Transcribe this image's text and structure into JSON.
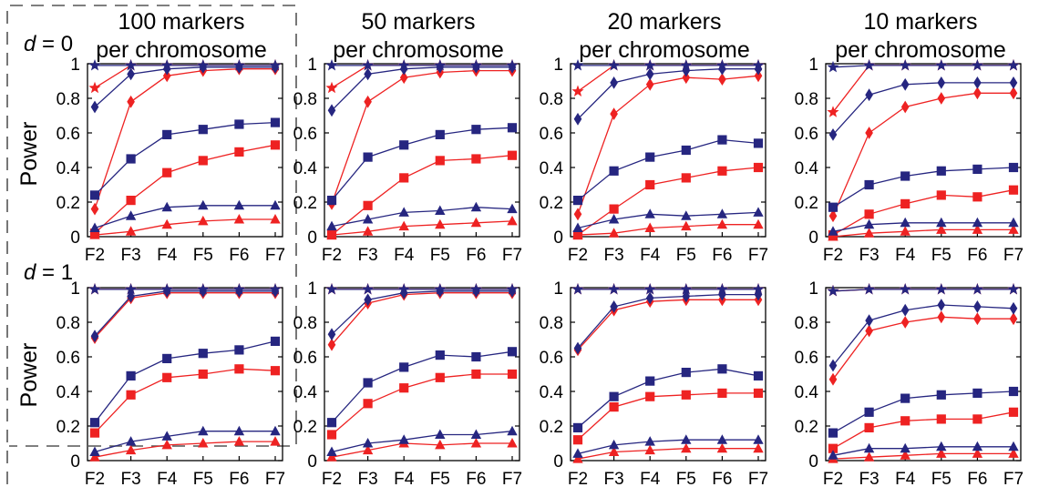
{
  "colors": {
    "blue": "#262680",
    "red": "#ee2222"
  },
  "col_titles": [
    {
      "line1": "100 markers",
      "line2": "per chromosome"
    },
    {
      "line1": "50 markers",
      "line2": "per chromosome"
    },
    {
      "line1": "20 markers",
      "line2": "per chromosome"
    },
    {
      "line1": "10 markers",
      "line2": "per chromosome"
    }
  ],
  "row_labels": [
    {
      "var": "d",
      "rest": " = 0"
    },
    {
      "var": "d",
      "rest": " = 1"
    }
  ],
  "ylabel": "Power",
  "xticks": [
    "F2",
    "F3",
    "F4",
    "F5",
    "F6",
    "F7"
  ],
  "yticks": [
    "0",
    "0.2",
    "0.4",
    "0.6",
    "0.8",
    "1"
  ],
  "chart_data": [
    {
      "type": "line",
      "row": 0,
      "col": 0,
      "ylim": [
        0,
        1
      ],
      "categories": [
        "F2",
        "F3",
        "F4",
        "F5",
        "F6",
        "F7"
      ],
      "series": [
        {
          "marker": "star",
          "color": "blue",
          "values": [
            0.99,
            0.99,
            0.99,
            0.99,
            0.99,
            0.99
          ]
        },
        {
          "marker": "star",
          "color": "red",
          "values": [
            0.86,
            0.99,
            0.99,
            0.99,
            0.99,
            0.99
          ]
        },
        {
          "marker": "diamond",
          "color": "blue",
          "values": [
            0.75,
            0.94,
            0.97,
            0.98,
            0.98,
            0.98
          ]
        },
        {
          "marker": "diamond",
          "color": "red",
          "values": [
            0.16,
            0.78,
            0.93,
            0.96,
            0.97,
            0.97
          ]
        },
        {
          "marker": "square",
          "color": "blue",
          "values": [
            0.24,
            0.45,
            0.59,
            0.62,
            0.65,
            0.66
          ]
        },
        {
          "marker": "square",
          "color": "red",
          "values": [
            0.02,
            0.21,
            0.37,
            0.44,
            0.49,
            0.53
          ]
        },
        {
          "marker": "triangle",
          "color": "blue",
          "values": [
            0.05,
            0.12,
            0.17,
            0.18,
            0.18,
            0.18
          ]
        },
        {
          "marker": "triangle",
          "color": "red",
          "values": [
            0.01,
            0.03,
            0.07,
            0.09,
            0.1,
            0.1
          ]
        }
      ]
    },
    {
      "type": "line",
      "row": 0,
      "col": 1,
      "ylim": [
        0,
        1
      ],
      "categories": [
        "F2",
        "F3",
        "F4",
        "F5",
        "F6",
        "F7"
      ],
      "series": [
        {
          "marker": "star",
          "color": "blue",
          "values": [
            0.99,
            0.99,
            0.99,
            0.99,
            0.99,
            0.99
          ]
        },
        {
          "marker": "star",
          "color": "red",
          "values": [
            0.86,
            0.99,
            0.99,
            0.99,
            0.99,
            0.99
          ]
        },
        {
          "marker": "diamond",
          "color": "blue",
          "values": [
            0.73,
            0.94,
            0.97,
            0.98,
            0.98,
            0.98
          ]
        },
        {
          "marker": "diamond",
          "color": "red",
          "values": [
            0.19,
            0.78,
            0.92,
            0.95,
            0.96,
            0.96
          ]
        },
        {
          "marker": "square",
          "color": "blue",
          "values": [
            0.21,
            0.46,
            0.53,
            0.59,
            0.62,
            0.63
          ]
        },
        {
          "marker": "square",
          "color": "red",
          "values": [
            0.01,
            0.18,
            0.34,
            0.44,
            0.45,
            0.47
          ]
        },
        {
          "marker": "triangle",
          "color": "blue",
          "values": [
            0.06,
            0.1,
            0.14,
            0.15,
            0.17,
            0.16
          ]
        },
        {
          "marker": "triangle",
          "color": "red",
          "values": [
            0.01,
            0.03,
            0.06,
            0.07,
            0.08,
            0.09
          ]
        }
      ]
    },
    {
      "type": "line",
      "row": 0,
      "col": 2,
      "ylim": [
        0,
        1
      ],
      "categories": [
        "F2",
        "F3",
        "F4",
        "F5",
        "F6",
        "F7"
      ],
      "series": [
        {
          "marker": "star",
          "color": "blue",
          "values": [
            0.99,
            0.99,
            0.99,
            0.99,
            0.99,
            0.99
          ]
        },
        {
          "marker": "star",
          "color": "red",
          "values": [
            0.84,
            0.99,
            0.99,
            0.99,
            0.99,
            0.99
          ]
        },
        {
          "marker": "diamond",
          "color": "blue",
          "values": [
            0.68,
            0.89,
            0.94,
            0.96,
            0.97,
            0.97
          ]
        },
        {
          "marker": "diamond",
          "color": "red",
          "values": [
            0.13,
            0.71,
            0.88,
            0.92,
            0.91,
            0.93
          ]
        },
        {
          "marker": "square",
          "color": "blue",
          "values": [
            0.21,
            0.38,
            0.46,
            0.5,
            0.56,
            0.54
          ]
        },
        {
          "marker": "square",
          "color": "red",
          "values": [
            0.01,
            0.16,
            0.3,
            0.34,
            0.38,
            0.4
          ]
        },
        {
          "marker": "triangle",
          "color": "blue",
          "values": [
            0.05,
            0.1,
            0.13,
            0.12,
            0.13,
            0.14
          ]
        },
        {
          "marker": "triangle",
          "color": "red",
          "values": [
            0.01,
            0.02,
            0.05,
            0.06,
            0.07,
            0.07
          ]
        }
      ]
    },
    {
      "type": "line",
      "row": 0,
      "col": 3,
      "ylim": [
        0,
        1
      ],
      "categories": [
        "F2",
        "F3",
        "F4",
        "F5",
        "F6",
        "F7"
      ],
      "series": [
        {
          "marker": "star",
          "color": "blue",
          "values": [
            0.98,
            0.99,
            0.99,
            0.99,
            0.99,
            0.99
          ]
        },
        {
          "marker": "star",
          "color": "red",
          "values": [
            0.72,
            0.99,
            0.99,
            0.99,
            0.99,
            0.99
          ]
        },
        {
          "marker": "diamond",
          "color": "blue",
          "values": [
            0.59,
            0.82,
            0.88,
            0.89,
            0.89,
            0.89
          ]
        },
        {
          "marker": "diamond",
          "color": "red",
          "values": [
            0.12,
            0.6,
            0.75,
            0.8,
            0.83,
            0.83
          ]
        },
        {
          "marker": "square",
          "color": "blue",
          "values": [
            0.17,
            0.3,
            0.35,
            0.38,
            0.39,
            0.4
          ]
        },
        {
          "marker": "square",
          "color": "red",
          "values": [
            0.01,
            0.13,
            0.19,
            0.24,
            0.23,
            0.27
          ]
        },
        {
          "marker": "triangle",
          "color": "blue",
          "values": [
            0.03,
            0.07,
            0.08,
            0.08,
            0.08,
            0.08
          ]
        },
        {
          "marker": "triangle",
          "color": "red",
          "values": [
            0.0,
            0.02,
            0.03,
            0.04,
            0.04,
            0.04
          ]
        }
      ]
    },
    {
      "type": "line",
      "row": 1,
      "col": 0,
      "ylim": [
        0,
        1
      ],
      "categories": [
        "F2",
        "F3",
        "F4",
        "F5",
        "F6",
        "F7"
      ],
      "series": [
        {
          "marker": "star",
          "color": "blue",
          "values": [
            0.99,
            0.99,
            0.99,
            0.99,
            0.99,
            0.99
          ]
        },
        {
          "marker": "star",
          "color": "red",
          "values": [
            0.99,
            0.99,
            0.99,
            0.99,
            0.99,
            0.99
          ]
        },
        {
          "marker": "diamond",
          "color": "blue",
          "values": [
            0.72,
            0.95,
            0.98,
            0.98,
            0.98,
            0.98
          ]
        },
        {
          "marker": "diamond",
          "color": "red",
          "values": [
            0.71,
            0.94,
            0.97,
            0.97,
            0.97,
            0.97
          ]
        },
        {
          "marker": "square",
          "color": "blue",
          "values": [
            0.22,
            0.49,
            0.59,
            0.62,
            0.64,
            0.69
          ]
        },
        {
          "marker": "square",
          "color": "red",
          "values": [
            0.16,
            0.38,
            0.48,
            0.5,
            0.53,
            0.52
          ]
        },
        {
          "marker": "triangle",
          "color": "blue",
          "values": [
            0.05,
            0.11,
            0.14,
            0.17,
            0.17,
            0.17
          ]
        },
        {
          "marker": "triangle",
          "color": "red",
          "values": [
            0.02,
            0.06,
            0.09,
            0.1,
            0.11,
            0.11
          ]
        }
      ]
    },
    {
      "type": "line",
      "row": 1,
      "col": 1,
      "ylim": [
        0,
        1
      ],
      "categories": [
        "F2",
        "F3",
        "F4",
        "F5",
        "F6",
        "F7"
      ],
      "series": [
        {
          "marker": "star",
          "color": "blue",
          "values": [
            0.99,
            0.99,
            0.99,
            0.99,
            0.99,
            0.99
          ]
        },
        {
          "marker": "star",
          "color": "red",
          "values": [
            0.99,
            0.99,
            0.99,
            0.99,
            0.99,
            0.99
          ]
        },
        {
          "marker": "diamond",
          "color": "blue",
          "values": [
            0.73,
            0.93,
            0.97,
            0.98,
            0.98,
            0.98
          ]
        },
        {
          "marker": "diamond",
          "color": "red",
          "values": [
            0.67,
            0.91,
            0.96,
            0.97,
            0.97,
            0.97
          ]
        },
        {
          "marker": "square",
          "color": "blue",
          "values": [
            0.22,
            0.45,
            0.54,
            0.61,
            0.6,
            0.63
          ]
        },
        {
          "marker": "square",
          "color": "red",
          "values": [
            0.15,
            0.33,
            0.42,
            0.48,
            0.5,
            0.5
          ]
        },
        {
          "marker": "triangle",
          "color": "blue",
          "values": [
            0.05,
            0.1,
            0.12,
            0.15,
            0.15,
            0.17
          ]
        },
        {
          "marker": "triangle",
          "color": "red",
          "values": [
            0.02,
            0.06,
            0.1,
            0.09,
            0.1,
            0.1
          ]
        }
      ]
    },
    {
      "type": "line",
      "row": 1,
      "col": 2,
      "ylim": [
        0,
        1
      ],
      "categories": [
        "F2",
        "F3",
        "F4",
        "F5",
        "F6",
        "F7"
      ],
      "series": [
        {
          "marker": "star",
          "color": "blue",
          "values": [
            0.99,
            0.99,
            0.99,
            0.99,
            0.99,
            0.99
          ]
        },
        {
          "marker": "star",
          "color": "red",
          "values": [
            0.99,
            0.99,
            0.99,
            0.99,
            0.99,
            0.99
          ]
        },
        {
          "marker": "diamond",
          "color": "blue",
          "values": [
            0.65,
            0.89,
            0.94,
            0.95,
            0.96,
            0.96
          ]
        },
        {
          "marker": "diamond",
          "color": "red",
          "values": [
            0.64,
            0.87,
            0.92,
            0.93,
            0.93,
            0.93
          ]
        },
        {
          "marker": "square",
          "color": "blue",
          "values": [
            0.19,
            0.37,
            0.46,
            0.51,
            0.53,
            0.49
          ]
        },
        {
          "marker": "square",
          "color": "red",
          "values": [
            0.12,
            0.31,
            0.37,
            0.38,
            0.39,
            0.39
          ]
        },
        {
          "marker": "triangle",
          "color": "blue",
          "values": [
            0.04,
            0.09,
            0.11,
            0.12,
            0.12,
            0.12
          ]
        },
        {
          "marker": "triangle",
          "color": "red",
          "values": [
            0.01,
            0.05,
            0.06,
            0.07,
            0.07,
            0.07
          ]
        }
      ]
    },
    {
      "type": "line",
      "row": 1,
      "col": 3,
      "ylim": [
        0,
        1
      ],
      "categories": [
        "F2",
        "F3",
        "F4",
        "F5",
        "F6",
        "F7"
      ],
      "series": [
        {
          "marker": "star",
          "color": "blue",
          "values": [
            0.98,
            0.99,
            0.99,
            0.99,
            0.99,
            0.99
          ]
        },
        {
          "marker": "star",
          "color": "red",
          "values": [
            0.98,
            0.99,
            0.99,
            0.99,
            0.99,
            0.99
          ]
        },
        {
          "marker": "diamond",
          "color": "blue",
          "values": [
            0.55,
            0.81,
            0.87,
            0.9,
            0.89,
            0.88
          ]
        },
        {
          "marker": "diamond",
          "color": "red",
          "values": [
            0.47,
            0.75,
            0.8,
            0.83,
            0.82,
            0.82
          ]
        },
        {
          "marker": "square",
          "color": "blue",
          "values": [
            0.16,
            0.28,
            0.36,
            0.38,
            0.39,
            0.4
          ]
        },
        {
          "marker": "square",
          "color": "red",
          "values": [
            0.07,
            0.19,
            0.23,
            0.24,
            0.24,
            0.28
          ]
        },
        {
          "marker": "triangle",
          "color": "blue",
          "values": [
            0.03,
            0.07,
            0.07,
            0.08,
            0.08,
            0.08
          ]
        },
        {
          "marker": "triangle",
          "color": "red",
          "values": [
            0.01,
            0.02,
            0.03,
            0.04,
            0.04,
            0.04
          ]
        }
      ]
    }
  ]
}
